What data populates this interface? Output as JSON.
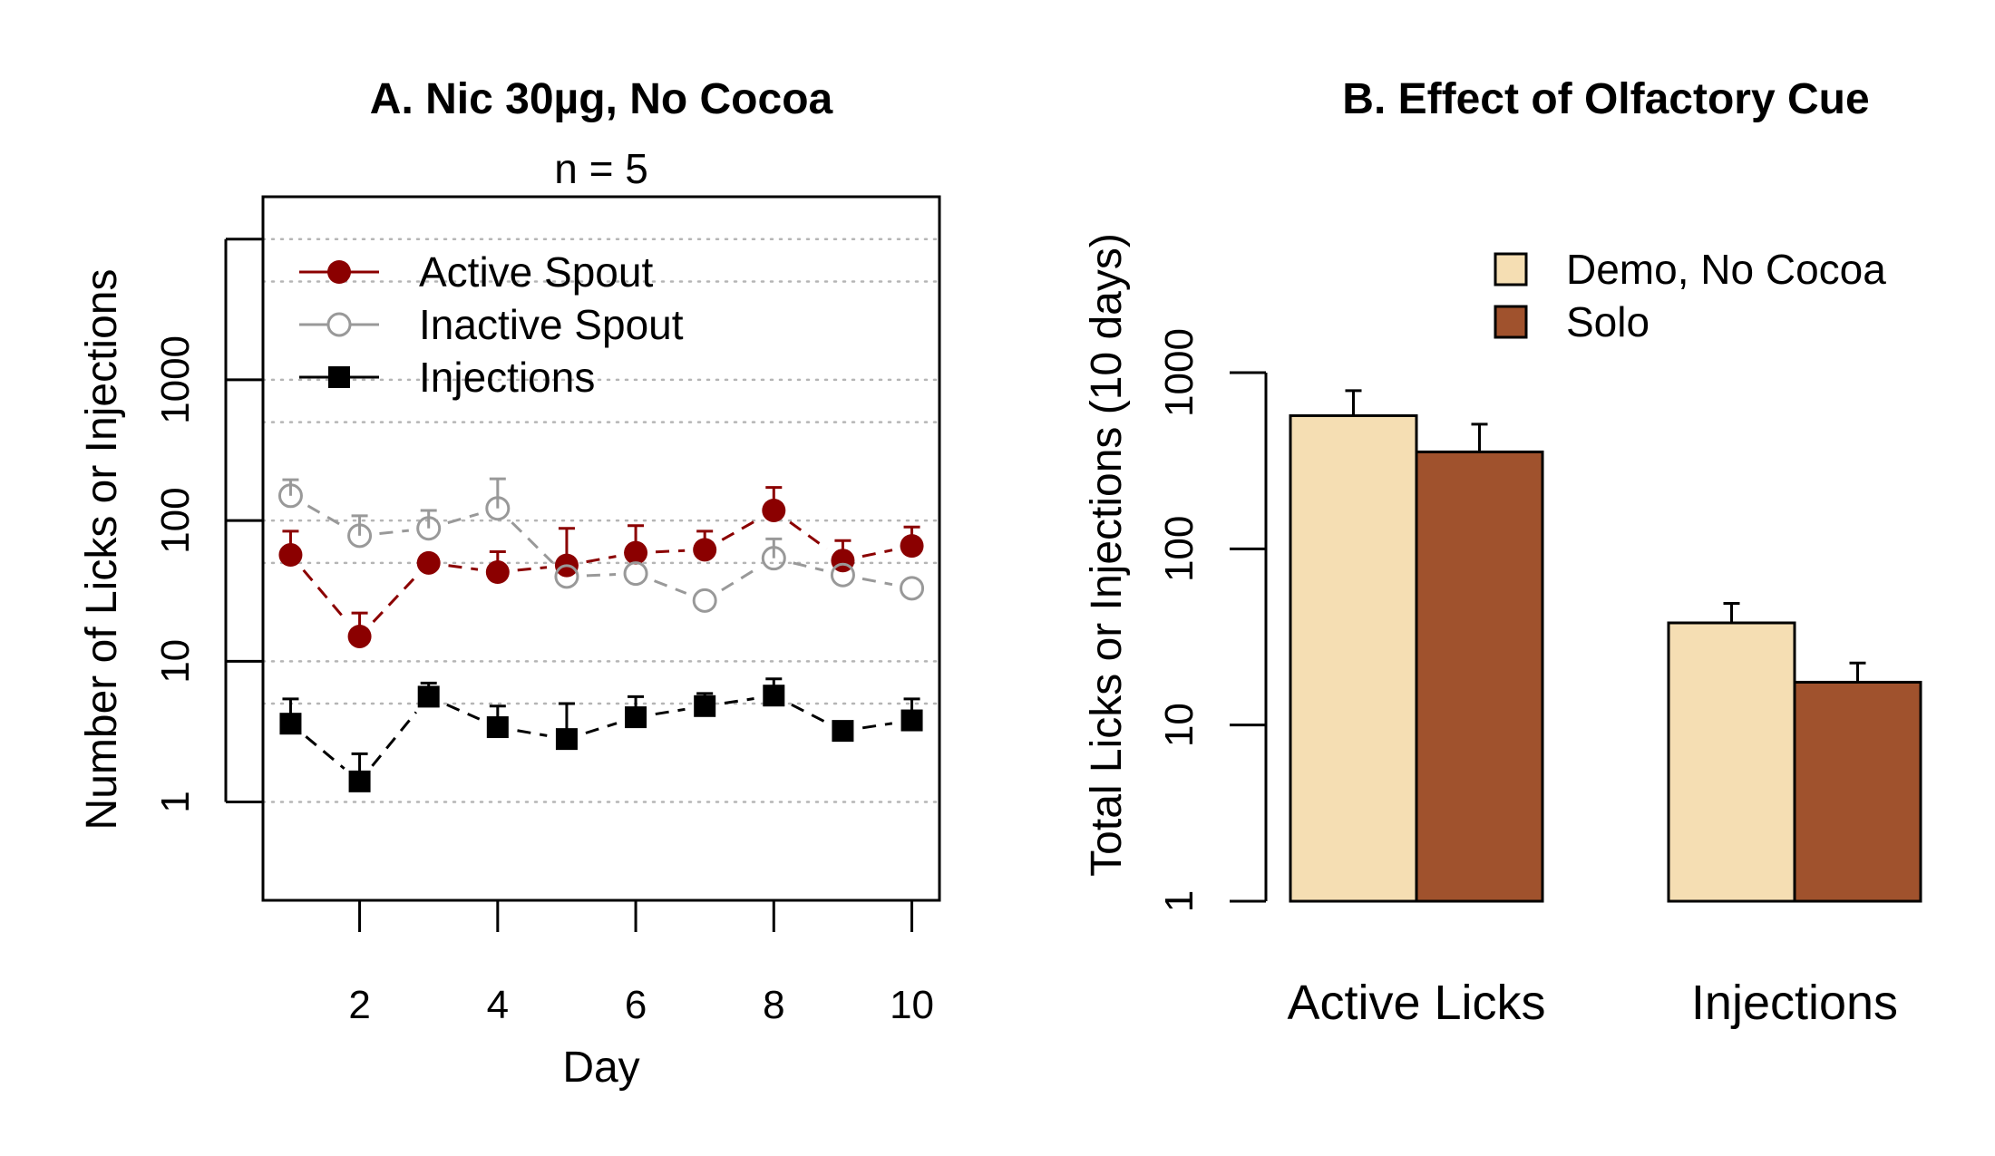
{
  "chart_data": [
    {
      "type": "line",
      "title": "A. Nic 30µg, No Cocoa",
      "subtitle": "n = 5",
      "xlabel": "Day",
      "ylabel": "Number of Licks or Injections",
      "xlim": [
        0.6,
        10.4
      ],
      "ylim": [
        0.2,
        20000
      ],
      "log_y": true,
      "x_ticks": [
        2,
        4,
        6,
        8,
        10
      ],
      "y_ticks": [
        1,
        10,
        100,
        1000
      ],
      "y_tick_labels": [
        "1",
        "10",
        "100",
        "1000"
      ],
      "grid": "horizontal dotted at 1, 5, 10, 50, 100, 500, 1000, 5000, 10000",
      "legend_position": "top-left",
      "x": [
        1,
        2,
        3,
        4,
        5,
        6,
        7,
        8,
        9,
        10
      ],
      "series": [
        {
          "name": "Active Spout",
          "color": "#8b0000",
          "marker": "filled-circle",
          "values": [
            57,
            15,
            50,
            43,
            48,
            59,
            62,
            118,
            52,
            66
          ],
          "error_upper": [
            84,
            22,
            0,
            60,
            88,
            92,
            84,
            172,
            72,
            90
          ]
        },
        {
          "name": "Inactive Spout",
          "color": "#999999",
          "marker": "open-circle",
          "values": [
            150,
            78,
            88,
            122,
            40,
            42,
            27,
            54,
            41,
            33
          ],
          "error_upper": [
            195,
            108,
            118,
            198,
            0,
            0,
            0,
            74,
            0,
            0
          ]
        },
        {
          "name": "Injections",
          "color": "#000000",
          "marker": "filled-square",
          "values": [
            3.6,
            1.4,
            5.6,
            3.4,
            2.8,
            4.0,
            4.8,
            5.7,
            3.2,
            3.8
          ],
          "error_upper": [
            5.4,
            2.2,
            7.0,
            4.8,
            5.0,
            5.6,
            5.9,
            7.5,
            0,
            5.4
          ]
        }
      ]
    },
    {
      "type": "bar",
      "title": "B. Effect of Olfactory Cue",
      "xlabel": "",
      "ylabel": "Total Licks or Injections (10 days)",
      "log_y": true,
      "ylim": [
        1,
        1000
      ],
      "y_ticks": [
        1,
        10,
        100,
        1000
      ],
      "y_tick_labels": [
        "1",
        "10",
        "100",
        "1000"
      ],
      "legend_position": "top-right",
      "categories": [
        "Active Licks",
        "Injections"
      ],
      "series": [
        {
          "name": "Demo, No Cocoa",
          "color": "#f5deb3",
          "values": [
            570,
            38
          ],
          "error_upper": [
            790,
            49
          ]
        },
        {
          "name": "Solo",
          "color": "#a0522d",
          "values": [
            355,
            17.5
          ],
          "error_upper": [
            510,
            22.5
          ]
        }
      ]
    }
  ]
}
